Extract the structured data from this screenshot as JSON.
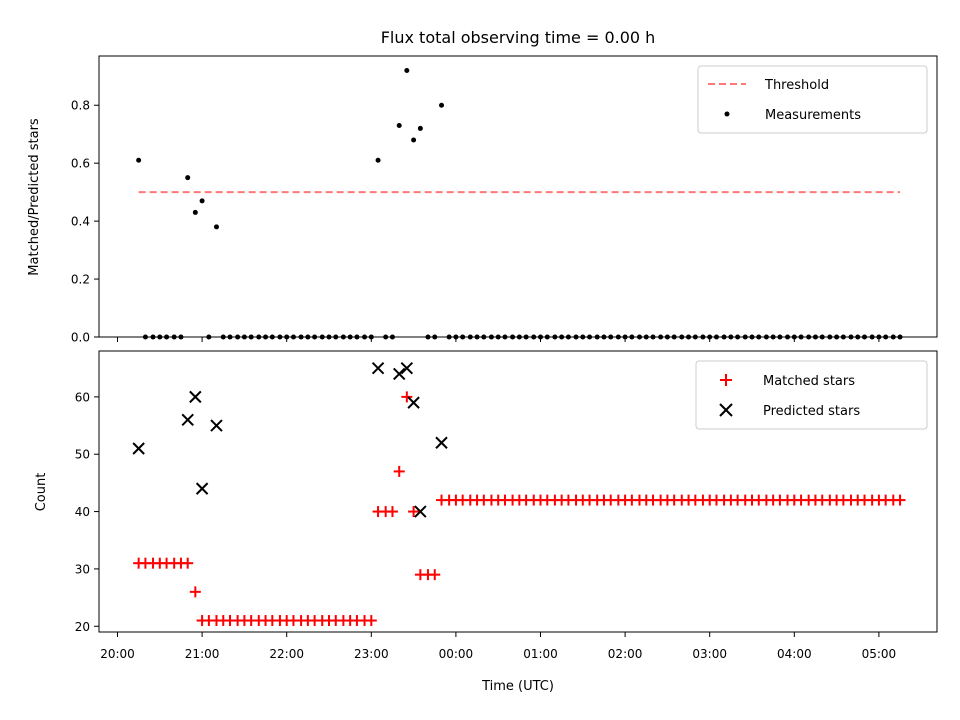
{
  "figure": {
    "title": "Flux total observing time = 0.00 h",
    "xlabel": "Time (UTC)",
    "xtick_labels": [
      "20:00",
      "21:00",
      "22:00",
      "23:00",
      "00:00",
      "01:00",
      "02:00",
      "03:00",
      "04:00",
      "05:00"
    ]
  },
  "chart_data": [
    {
      "type": "scatter",
      "ylabel": "Matched/Predicted stars",
      "ylim": [
        0,
        0.97
      ],
      "yticks": [
        0.0,
        0.2,
        0.4,
        0.6,
        0.8
      ],
      "ytick_labels": [
        "0.0",
        "0.2",
        "0.4",
        "0.6",
        "0.8"
      ],
      "legend_position": "top-right",
      "threshold": {
        "name": "Threshold",
        "value": 0.5,
        "x_start_h": 0.25,
        "x_end_h": 9.25,
        "color": "#ff7777"
      },
      "series": [
        {
          "name": "Measurements",
          "color": "#000000",
          "x_h": [
            0.25,
            0.33,
            0.42,
            0.5,
            0.58,
            0.67,
            0.75,
            0.83,
            0.92,
            1.0,
            1.08,
            1.17,
            1.25,
            1.33,
            1.42,
            1.5,
            1.58,
            1.67,
            1.75,
            1.83,
            1.92,
            2.0,
            2.08,
            2.17,
            2.25,
            2.33,
            2.42,
            2.5,
            2.58,
            2.67,
            2.75,
            2.83,
            2.92,
            3.0,
            3.08,
            3.17,
            3.25,
            3.33,
            3.42,
            3.5,
            3.58,
            3.67,
            3.75,
            3.83,
            3.92,
            4.0,
            4.08,
            4.17,
            4.25,
            4.33,
            4.42,
            4.5,
            4.58,
            4.67,
            4.75,
            4.83,
            4.92,
            5.0,
            5.08,
            5.17,
            5.25,
            5.33,
            5.42,
            5.5,
            5.58,
            5.67,
            5.75,
            5.83,
            5.92,
            6.0,
            6.08,
            6.17,
            6.25,
            6.33,
            6.42,
            6.5,
            6.58,
            6.67,
            6.75,
            6.83,
            6.92,
            7.0,
            7.08,
            7.17,
            7.25,
            7.33,
            7.42,
            7.5,
            7.58,
            7.67,
            7.75,
            7.83,
            7.92,
            8.0,
            8.08,
            8.17,
            8.25,
            8.33,
            8.42,
            8.5,
            8.58,
            8.67,
            8.75,
            8.83,
            8.92,
            9.0,
            9.08,
            9.17,
            9.25
          ],
          "y": [
            0.61,
            0,
            0,
            0,
            0,
            0,
            0,
            0.55,
            0.43,
            0.47,
            0,
            0.38,
            0,
            0,
            0,
            0,
            0,
            0,
            0,
            0,
            0,
            0,
            0,
            0,
            0,
            0,
            0,
            0,
            0,
            0,
            0,
            0,
            0,
            0,
            0.61,
            0,
            0,
            0.73,
            0.92,
            0.68,
            0.72,
            0,
            0,
            0.8,
            0,
            0,
            0,
            0,
            0,
            0,
            0,
            0,
            0,
            0,
            0,
            0,
            0,
            0,
            0,
            0,
            0,
            0,
            0,
            0,
            0,
            0,
            0,
            0,
            0,
            0,
            0,
            0,
            0,
            0,
            0,
            0,
            0,
            0,
            0,
            0,
            0,
            0,
            0,
            0,
            0,
            0,
            0,
            0,
            0,
            0,
            0,
            0,
            0,
            0,
            0,
            0,
            0,
            0,
            0,
            0,
            0,
            0,
            0,
            0,
            0,
            0,
            0,
            0,
            0
          ]
        }
      ]
    },
    {
      "type": "scatter",
      "ylabel": "Count",
      "ylim": [
        19,
        68
      ],
      "yticks": [
        20,
        30,
        40,
        50,
        60
      ],
      "ytick_labels": [
        "20",
        "30",
        "40",
        "50",
        "60"
      ],
      "legend_position": "top-right",
      "series": [
        {
          "name": "Matched stars",
          "marker": "plus",
          "color": "#ff0000",
          "x_h": [
            0.25,
            0.33,
            0.42,
            0.5,
            0.58,
            0.67,
            0.75,
            0.83,
            0.92,
            1.0,
            1.08,
            1.17,
            1.25,
            1.33,
            1.42,
            1.5,
            1.58,
            1.67,
            1.75,
            1.83,
            1.92,
            2.0,
            2.08,
            2.17,
            2.25,
            2.33,
            2.42,
            2.5,
            2.58,
            2.67,
            2.75,
            2.83,
            2.92,
            3.0,
            3.08,
            3.17,
            3.25,
            3.33,
            3.42,
            3.5,
            3.58,
            3.67,
            3.75,
            3.83,
            3.92,
            4.0,
            4.08,
            4.17,
            4.25,
            4.33,
            4.42,
            4.5,
            4.58,
            4.67,
            4.75,
            4.83,
            4.92,
            5.0,
            5.08,
            5.17,
            5.25,
            5.33,
            5.42,
            5.5,
            5.58,
            5.67,
            5.75,
            5.83,
            5.92,
            6.0,
            6.08,
            6.17,
            6.25,
            6.33,
            6.42,
            6.5,
            6.58,
            6.67,
            6.75,
            6.83,
            6.92,
            7.0,
            7.08,
            7.17,
            7.25,
            7.33,
            7.42,
            7.5,
            7.58,
            7.67,
            7.75,
            7.83,
            7.92,
            8.0,
            8.08,
            8.17,
            8.25,
            8.33,
            8.42,
            8.5,
            8.58,
            8.67,
            8.75,
            8.83,
            8.92,
            9.0,
            9.08,
            9.17,
            9.25
          ],
          "y": [
            31,
            31,
            31,
            31,
            31,
            31,
            31,
            31,
            26,
            21,
            21,
            21,
            21,
            21,
            21,
            21,
            21,
            21,
            21,
            21,
            21,
            21,
            21,
            21,
            21,
            21,
            21,
            21,
            21,
            21,
            21,
            21,
            21,
            21,
            40,
            40,
            40,
            47,
            60,
            40,
            29,
            29,
            29,
            42,
            42,
            42,
            42,
            42,
            42,
            42,
            42,
            42,
            42,
            42,
            42,
            42,
            42,
            42,
            42,
            42,
            42,
            42,
            42,
            42,
            42,
            42,
            42,
            42,
            42,
            42,
            42,
            42,
            42,
            42,
            42,
            42,
            42,
            42,
            42,
            42,
            42,
            42,
            42,
            42,
            42,
            42,
            42,
            42,
            42,
            42,
            42,
            42,
            42,
            42,
            42,
            42,
            42,
            42,
            42,
            42,
            42,
            42,
            42,
            42,
            42,
            42,
            42,
            42,
            42
          ]
        },
        {
          "name": "Predicted stars",
          "marker": "x",
          "color": "#000000",
          "x_h": [
            0.25,
            0.83,
            0.92,
            1.0,
            1.17,
            3.08,
            3.33,
            3.42,
            3.5,
            3.58,
            3.83
          ],
          "y": [
            51,
            56,
            60,
            44,
            55,
            65,
            64,
            65,
            59,
            40,
            52
          ]
        }
      ]
    }
  ]
}
